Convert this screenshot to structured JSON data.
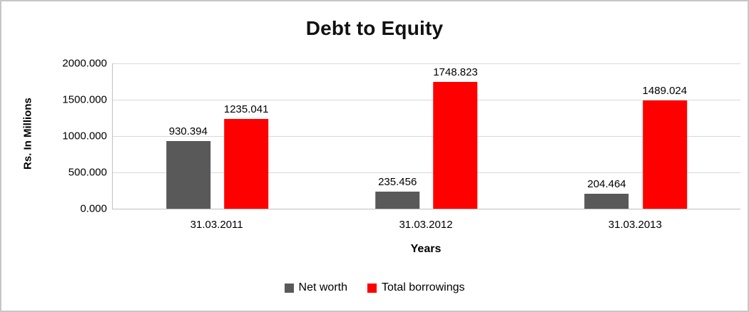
{
  "chart_data": {
    "type": "bar",
    "title": "Debt to Equity",
    "xlabel": "Years",
    "ylabel": "Rs. In Millions",
    "categories": [
      "31.03.2011",
      "31.03.2012",
      "31.03.2013"
    ],
    "series": [
      {
        "name": "Net worth",
        "color": "#595959",
        "values": [
          930.394,
          235.456,
          204.464
        ]
      },
      {
        "name": "Total borrowings",
        "color": "#ff0000",
        "values": [
          1235.041,
          1748.823,
          1489.024
        ]
      }
    ],
    "data_labels": {
      "Net worth": [
        "930.394",
        "235.456",
        "204.464"
      ],
      "Total borrowings": [
        "1235.041",
        "1748.823",
        "1489.024"
      ]
    },
    "ylim": [
      0,
      2000
    ],
    "yticks": [
      "0.000",
      "500.000",
      "1000.000",
      "1500.000",
      "2000.000"
    ],
    "grid": true,
    "legend_position": "bottom",
    "colors": {
      "gridline": "#d9d9d9",
      "axis_line": "#bfbfbf",
      "text": "#000000"
    }
  }
}
